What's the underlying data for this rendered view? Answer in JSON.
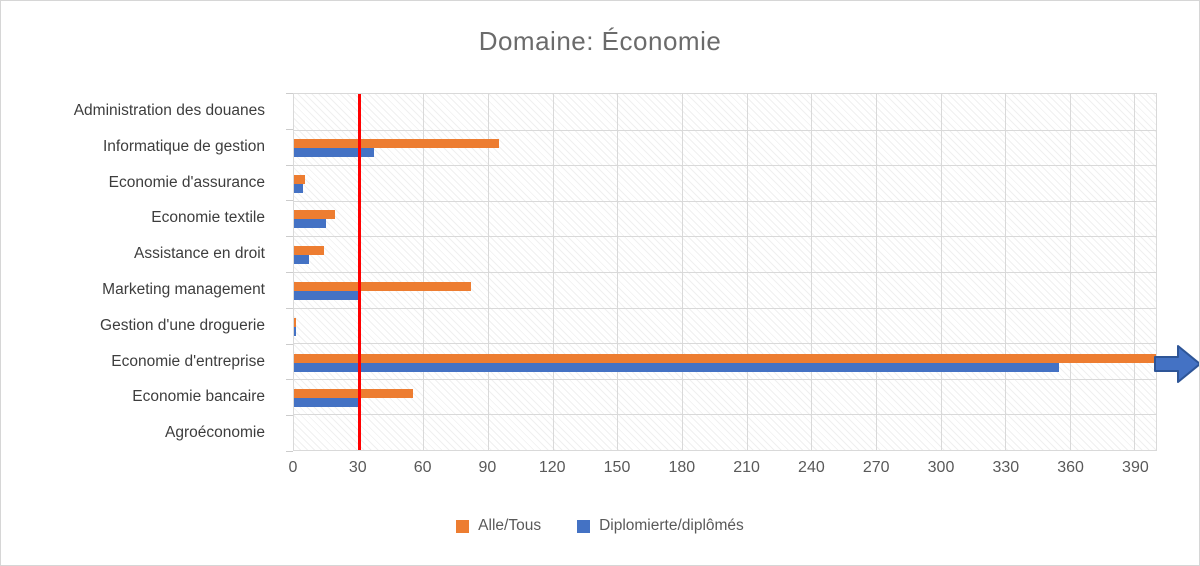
{
  "title": "Domaine: Économie",
  "chart_data": {
    "type": "bar",
    "orientation": "horizontal",
    "title": "Domaine: Économie",
    "categories": [
      "Administration des douanes",
      "Informatique de gestion",
      "Economie d'assurance",
      "Economie textile",
      "Assistance en droit",
      "Marketing management",
      "Gestion d'une droguerie",
      "Economie d'entreprise",
      "Economie bancaire",
      "Agroéconomie"
    ],
    "series": [
      {
        "name": "Alle/Tous",
        "color": "#ED7D31",
        "values": [
          0,
          95,
          5,
          19,
          14,
          82,
          1,
          400,
          55,
          0
        ]
      },
      {
        "name": "Diplomierte/diplômés",
        "color": "#4472C4",
        "values": [
          0,
          37,
          4,
          15,
          7,
          31,
          1,
          355,
          30,
          0
        ]
      }
    ],
    "xlim": [
      0,
      400
    ],
    "x_ticks": [
      0,
      30,
      60,
      90,
      120,
      150,
      180,
      210,
      240,
      270,
      300,
      330,
      360,
      390
    ],
    "grid": true,
    "plot_pattern": "diagonal-hatch",
    "reference_line": {
      "value": 30,
      "color": "#FF0000"
    },
    "overflow": {
      "category": "Economie d'entreprise",
      "series": "Alle/Tous",
      "clipped_at": 400,
      "indicator": "blue right arrow at plot edge"
    },
    "legend_position": "bottom"
  },
  "colors": {
    "gridline": "#d9d9d9",
    "axis_text": "#595959",
    "category_text": "#3d3d3d",
    "title_text": "#6b6b6b",
    "arrow_fill": "#4472C4",
    "arrow_stroke": "#2E5597"
  }
}
